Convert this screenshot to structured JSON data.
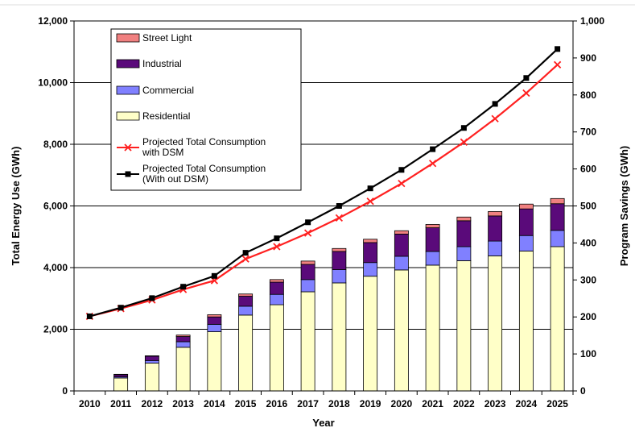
{
  "chart_data": {
    "type": "bar",
    "subtype": "stacked-bar-with-lines",
    "title": "",
    "xlabel": "Year",
    "ylabel": "Total Energy Use (GWh)",
    "y2label": "Program Savings (GWh)",
    "categories": [
      "2010",
      "2011",
      "2012",
      "2013",
      "2014",
      "2015",
      "2016",
      "2017",
      "2018",
      "2019",
      "2020",
      "2021",
      "2022",
      "2023",
      "2024",
      "2025"
    ],
    "ylim": [
      0,
      12000
    ],
    "y2lim": [
      0,
      1000
    ],
    "yticks": [
      "0",
      "2,000",
      "4,000",
      "6,000",
      "8,000",
      "10,000",
      "12,000"
    ],
    "y2ticks": [
      "0",
      "100",
      "200",
      "300",
      "400",
      "500",
      "600",
      "700",
      "800",
      "900",
      "1,000"
    ],
    "grid": "horizontal",
    "legend_position": "top-left",
    "bar_axis": "right",
    "bar_series": [
      {
        "name": "Residential",
        "color": "#FFFFC8",
        "values": [
          0,
          35,
          75,
          118,
          160,
          205,
          233,
          268,
          292,
          310,
          327,
          340,
          352,
          365,
          378,
          390
        ]
      },
      {
        "name": "Commercial",
        "color": "#8080FF",
        "values": [
          0,
          3,
          7,
          15,
          20,
          24,
          28,
          33,
          36,
          37,
          37,
          37,
          38,
          40,
          42,
          44
        ]
      },
      {
        "name": "Industrial",
        "color": "#5A0A7A",
        "values": [
          0,
          6,
          12,
          14,
          20,
          27,
          33,
          41,
          49,
          54,
          60,
          64,
          70,
          68,
          72,
          72
        ]
      },
      {
        "name": "Street Light",
        "color": "#F08080",
        "values": [
          0,
          1,
          1,
          4,
          6,
          6,
          7,
          9,
          8,
          9,
          9,
          9,
          10,
          12,
          13,
          14
        ]
      }
    ],
    "line_series": [
      {
        "name": "Projected Total Consumption with DSM",
        "axis": "left",
        "color": "#FF2020",
        "marker": "x",
        "values": [
          2420,
          2670,
          2950,
          3290,
          3580,
          4280,
          4680,
          5120,
          5610,
          6150,
          6730,
          7380,
          8070,
          8830,
          9660,
          10580
        ]
      },
      {
        "name": "Projected Total Consumption (With out DSM)",
        "axis": "left",
        "color": "#000000",
        "marker": "square",
        "values": [
          2420,
          2700,
          3010,
          3380,
          3730,
          4480,
          4950,
          5470,
          6000,
          6570,
          7170,
          7840,
          8530,
          9310,
          10150,
          11090
        ]
      }
    ],
    "legend": [
      {
        "label": "Street Light",
        "kind": "patch",
        "color": "#F08080"
      },
      {
        "label": "Industrial",
        "kind": "patch",
        "color": "#5A0A7A"
      },
      {
        "label": "Commercial",
        "kind": "patch",
        "color": "#8080FF"
      },
      {
        "label": "Residential",
        "kind": "patch",
        "color": "#FFFFC8"
      },
      {
        "label": "Projected Total Consumption\nwith DSM",
        "kind": "line-x",
        "color": "#FF2020"
      },
      {
        "label": "Projected Total Consumption\n(With out DSM)",
        "kind": "line-square",
        "color": "#000000"
      }
    ]
  }
}
